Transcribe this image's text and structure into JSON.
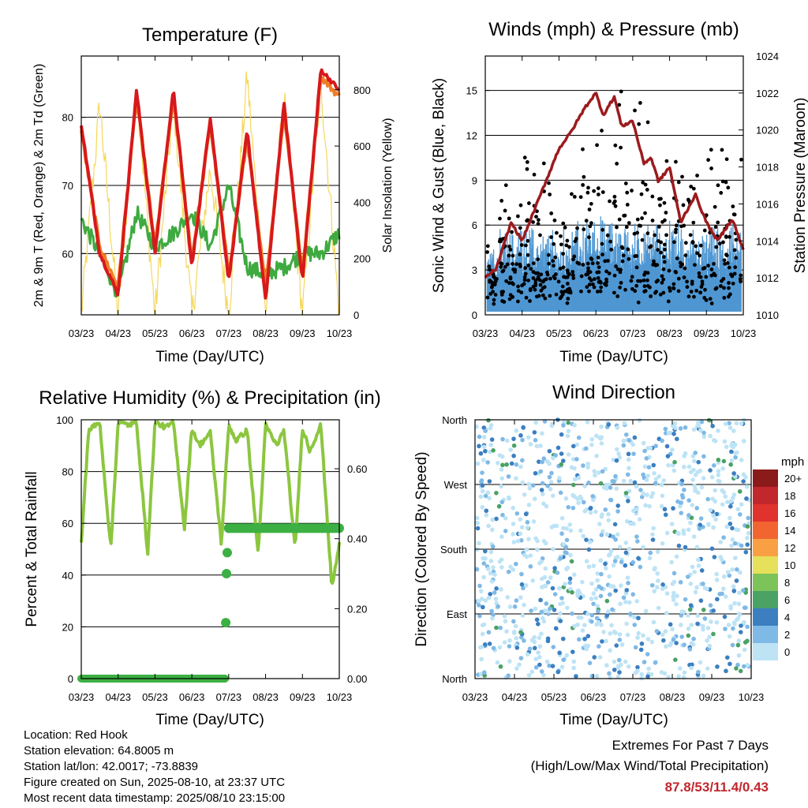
{
  "footer": {
    "location": "Location: Red Hook",
    "elevation": "Station elevation: 64.8005 m",
    "latlon": "Station lat/lon: 42.0017; -73.8839",
    "created": "Figure created on Sun, 2025-08-10, at 23:37 UTC",
    "recent": "Most recent data timestamp: 2025/08/10 23:15:00"
  },
  "extremes": {
    "line1": "Extremes For Past 7 Days",
    "line2": "(High/Low/Max Wind/Total Precipitation)",
    "values": "87.8/53/11.4/0.43"
  },
  "chart_data": [
    {
      "type": "line",
      "title": "Temperature (F)",
      "xlabel": "Time (Day/UTC)",
      "ylabel": "2m & 9m T (Red, Orange) & 2m Td (Green)",
      "ylabel_right": "Solar Insolation (Yellow)",
      "x_ticks": [
        "03/23",
        "04/23",
        "05/23",
        "06/23",
        "07/23",
        "08/23",
        "09/23",
        "10/23"
      ],
      "y_ticks": [
        60,
        70,
        80
      ],
      "y_right_ticks": [
        0,
        200,
        400,
        600,
        800
      ],
      "ylim": [
        51,
        89
      ],
      "y_right_lim": [
        0,
        920
      ],
      "grid": true,
      "colors": {
        "t2m": "#d7191c",
        "t9m": "#f07e26",
        "td": "#3eaa40",
        "solar": "#f5d75a"
      },
      "series": [
        {
          "key": "t2m",
          "x": [
            3.0,
            3.5,
            4.0,
            4.5,
            5.0,
            5.5,
            6.0,
            6.5,
            7.0,
            7.5,
            8.0,
            8.5,
            9.0,
            9.5,
            10.0
          ],
          "values": [
            79,
            60,
            54,
            84,
            60,
            84,
            58,
            80,
            56,
            78,
            53,
            82,
            56,
            87,
            84
          ]
        },
        {
          "key": "t9m",
          "x": [
            3.0,
            3.5,
            4.0,
            4.5,
            5.0,
            5.5,
            6.0,
            6.5,
            7.0,
            7.5,
            8.0,
            8.5,
            9.0,
            9.5,
            10.0
          ],
          "values": [
            78,
            61,
            55,
            83,
            61,
            83,
            59,
            79,
            57,
            77,
            55,
            81,
            57,
            86,
            83
          ]
        },
        {
          "key": "td",
          "x": [
            3.0,
            3.5,
            4.0,
            4.5,
            5.0,
            5.5,
            6.0,
            6.5,
            7.0,
            7.5,
            8.0,
            8.5,
            9.0,
            9.5,
            10.0
          ],
          "values": [
            65,
            60,
            54,
            66,
            61,
            63,
            66,
            61,
            70,
            58,
            57,
            58,
            60,
            60,
            63
          ]
        },
        {
          "key": "solar",
          "x": [
            3.0,
            3.5,
            4.0,
            4.5,
            5.0,
            5.5,
            6.0,
            6.5,
            7.0,
            7.5,
            8.0,
            8.5,
            9.0,
            9.5,
            10.0
          ],
          "values": [
            0,
            750,
            0,
            820,
            0,
            760,
            0,
            520,
            0,
            850,
            0,
            780,
            0,
            830,
            0
          ]
        }
      ]
    },
    {
      "type": "line",
      "title": "Winds (mph) & Pressure (mb)",
      "xlabel": "Time (Day/UTC)",
      "ylabel": "Sonic Wind & Gust (Blue, Black)",
      "ylabel_right": "Station Pressure (Maroon)",
      "x_ticks": [
        "03/23",
        "04/23",
        "05/23",
        "06/23",
        "07/23",
        "08/23",
        "09/23",
        "10/23"
      ],
      "y_ticks": [
        0,
        3,
        6,
        9,
        12,
        15
      ],
      "y_right_ticks": [
        1010,
        1012,
        1014,
        1016,
        1018,
        1020,
        1022,
        1024
      ],
      "ylim": [
        0,
        17.3
      ],
      "y_right_lim": [
        1010,
        1024
      ],
      "grid": true,
      "colors": {
        "wind": "#4f97d2",
        "gust": "#000000",
        "pressure": "#9b1b1e"
      },
      "series": [
        {
          "key": "pressure",
          "x": [
            3.0,
            3.3,
            3.7,
            4.0,
            4.4,
            4.8,
            5.0,
            5.3,
            5.7,
            6.0,
            6.2,
            6.5,
            6.7,
            7.0,
            7.3,
            7.5,
            7.7,
            8.0,
            8.3,
            8.7,
            9.0,
            9.3,
            9.7,
            10.0
          ],
          "values": [
            1012,
            1012.5,
            1015,
            1014,
            1016,
            1018,
            1019,
            1019.8,
            1021.2,
            1022,
            1020.8,
            1021.8,
            1020.2,
            1020.5,
            1018.2,
            1018.5,
            1017.2,
            1018,
            1015,
            1016.5,
            1015,
            1014,
            1015.2,
            1013.5
          ]
        },
        {
          "key": "wind_typical",
          "x": [
            3.0,
            4.0,
            5.0,
            6.0,
            7.0,
            8.0,
            9.0,
            10.0
          ],
          "values": [
            2,
            3,
            2.5,
            3.5,
            3,
            3,
            2.5,
            3
          ]
        },
        {
          "key": "gust_max",
          "x": [
            3.0,
            4.0,
            5.0,
            6.0,
            7.0,
            8.0,
            9.0,
            10.0
          ],
          "values": [
            4.7,
            12,
            7.4,
            12.8,
            15.2,
            11.2,
            12.8,
            12.7
          ]
        }
      ]
    },
    {
      "type": "line",
      "title": "Relative Humidity (%) & Precipitation (in)",
      "xlabel": "Time (Day/UTC)",
      "ylabel": "Percent & Total Rainfall",
      "x_ticks": [
        "03/23",
        "04/23",
        "05/23",
        "06/23",
        "07/23",
        "08/23",
        "09/23",
        "10/23"
      ],
      "y_ticks": [
        0,
        20,
        40,
        60,
        80,
        100
      ],
      "y_right_ticks": [
        "0.00",
        "0.20",
        "0.40",
        "0.60"
      ],
      "ylim": [
        0,
        100
      ],
      "y_right_lim": [
        0,
        0.74
      ],
      "grid": true,
      "colors": {
        "rh": "#8cc63f",
        "precip": "#3cb043"
      },
      "series": [
        {
          "key": "rh",
          "x": [
            3.0,
            3.2,
            3.5,
            3.8,
            4.0,
            4.3,
            4.5,
            4.8,
            5.0,
            5.3,
            5.5,
            5.8,
            6.0,
            6.2,
            6.5,
            6.8,
            7.0,
            7.2,
            7.5,
            7.8,
            8.0,
            8.3,
            8.5,
            8.8,
            9.0,
            9.2,
            9.5,
            9.8,
            10.0
          ],
          "values": [
            52,
            96,
            99,
            50,
            99,
            98,
            99,
            48,
            99,
            97,
            99,
            58,
            97,
            90,
            95,
            52,
            98,
            92,
            96,
            48,
            98,
            90,
            96,
            50,
            97,
            88,
            98,
            35,
            52
          ]
        },
        {
          "key": "precip",
          "x": [
            3.0,
            6.9,
            6.92,
            6.94,
            6.96,
            7.0,
            10.0
          ],
          "values": [
            0,
            0,
            0.16,
            0.3,
            0.36,
            0.43,
            0.43
          ]
        }
      ]
    },
    {
      "type": "scatter",
      "title": "Wind Direction",
      "xlabel": "Time (Day/UTC)",
      "ylabel": "Direction (Colored By Speed)",
      "x_ticks": [
        "03/23",
        "04/23",
        "05/23",
        "06/23",
        "07/23",
        "08/23",
        "09/23",
        "10/23"
      ],
      "y_ticks": [
        "North",
        "East",
        "South",
        "West",
        "North"
      ],
      "ylim": [
        0,
        360
      ],
      "grid": true,
      "legend": {
        "title": "mph",
        "labels": [
          "20+",
          "18",
          "16",
          "14",
          "12",
          "10",
          "8",
          "6",
          "4",
          "2",
          "0"
        ],
        "colors": [
          "#8b1a1a",
          "#c1272d",
          "#e0332e",
          "#f26531",
          "#f9a044",
          "#e6e05a",
          "#7cc35a",
          "#4aa264",
          "#3b7fc1",
          "#7fb9e6",
          "#bde3f5"
        ]
      }
    }
  ]
}
